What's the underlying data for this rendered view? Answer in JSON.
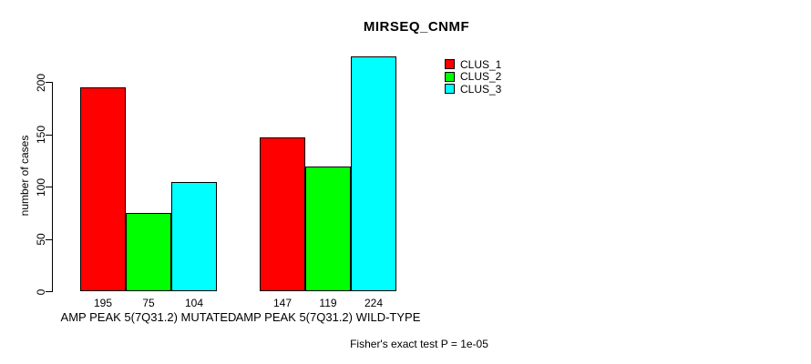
{
  "chart_data": {
    "type": "bar",
    "title": "MIRSEQ_CNMF",
    "xlabel": "",
    "ylabel": "number of cases",
    "yticks": [
      0,
      50,
      100,
      150,
      200
    ],
    "ylim": [
      0,
      230
    ],
    "grid": false,
    "legend_position": "top-right",
    "categories": [
      "AMP PEAK 5(7Q31.2) MUTATED",
      "AMP PEAK 5(7Q31.2) WILD-TYPE"
    ],
    "series": [
      {
        "name": "CLUS_1",
        "color": "#ff0000",
        "values": [
          195,
          147
        ]
      },
      {
        "name": "CLUS_2",
        "color": "#00ff00",
        "values": [
          75,
          119
        ]
      },
      {
        "name": "CLUS_3",
        "color": "#00ffff",
        "values": [
          104,
          224
        ]
      }
    ],
    "bar_value_labels": [
      [
        195,
        75,
        104
      ],
      [
        147,
        119,
        224
      ]
    ],
    "annotation": "Fisher's exact test P = 1e-05"
  },
  "colors": {
    "background": "#ffffff",
    "axis": "#000000",
    "text": "#000000"
  }
}
